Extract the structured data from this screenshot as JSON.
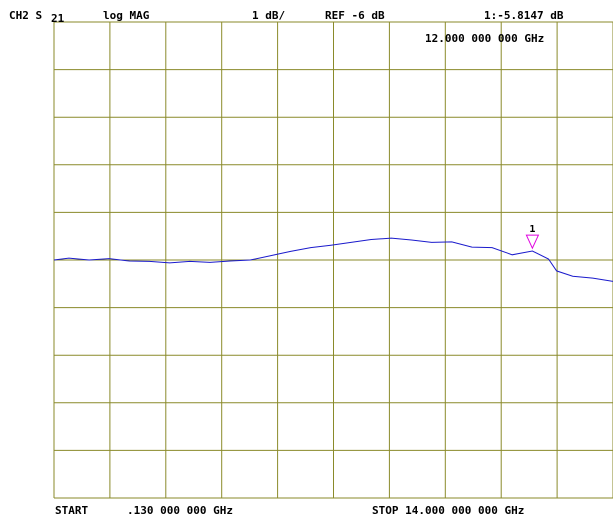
{
  "header": {
    "channel": "CH2 S",
    "channel_sub": "21",
    "format": "log MAG",
    "scale": "1 dB/",
    "reference": "REF -6 dB",
    "marker_readout": "1:-5.8147 dB",
    "marker_freq": "12.000 000 000 GHz"
  },
  "footer": {
    "start_label": "START",
    "start_value": ".130 000 000 GHz",
    "stop_text": "STOP 14.000 000 000 GHz"
  },
  "colors": {
    "grid": "#8a8a2a",
    "trace": "#1a1acc",
    "marker": "#e000e0",
    "marker_label": "#000000",
    "text": "#000000"
  },
  "chart_data": {
    "type": "line",
    "title": "",
    "xlabel": "",
    "ylabel": "",
    "x_unit": "GHz",
    "y_unit": "dB",
    "xlim": [
      0.13,
      14.0
    ],
    "ylim": [
      -11,
      -1
    ],
    "grid": true,
    "grid_divisions": {
      "x": 10,
      "y": 10
    },
    "reference_level_db": -6,
    "scale_db_per_div": 1,
    "series": [
      {
        "x": [
          0.13,
          0.5,
          1.0,
          1.5,
          2.0,
          2.5,
          3.0,
          3.5,
          4.0,
          4.5,
          5.0,
          5.5,
          6.0,
          6.5,
          7.0,
          7.5,
          8.0,
          8.5,
          9.0,
          9.5,
          10.0,
          10.5,
          11.0,
          11.5,
          12.0,
          12.4,
          12.6,
          13.0,
          13.5,
          14.0
        ],
        "values": [
          -6.0,
          -5.96,
          -6.0,
          -5.97,
          -6.02,
          -6.03,
          -6.06,
          -6.03,
          -6.05,
          -6.02,
          -6.0,
          -5.91,
          -5.82,
          -5.74,
          -5.69,
          -5.63,
          -5.57,
          -5.54,
          -5.58,
          -5.63,
          -5.62,
          -5.73,
          -5.74,
          -5.89,
          -5.81,
          -5.98,
          -6.23,
          -6.34,
          -6.38,
          -6.45
        ]
      }
    ],
    "markers": [
      {
        "label": "1",
        "x": 12.0,
        "y": -5.8147
      }
    ]
  }
}
